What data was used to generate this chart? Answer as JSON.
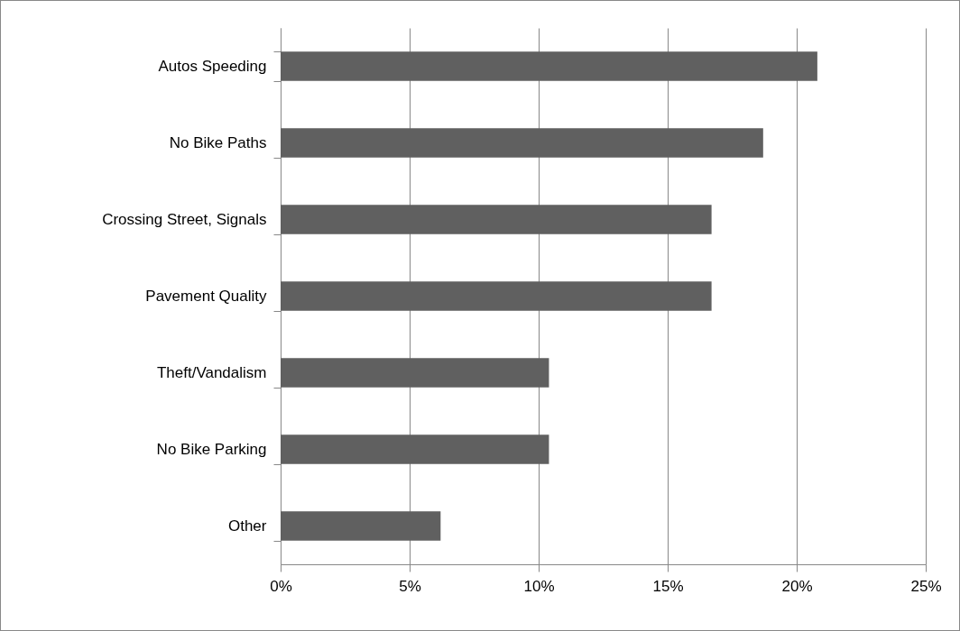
{
  "chart_data": {
    "type": "bar",
    "orientation": "horizontal",
    "categories": [
      "Autos Speeding",
      "No Bike Paths",
      "Crossing Street, Signals",
      "Pavement Quality",
      "Theft/Vandalism",
      "No Bike Parking",
      "Other"
    ],
    "values": [
      20.8,
      18.7,
      16.7,
      16.7,
      10.4,
      10.4,
      6.2
    ],
    "color": "#606060",
    "xlim": [
      0,
      25
    ],
    "xticks": [
      {
        "value": 0,
        "label": "0%"
      },
      {
        "value": 5,
        "label": "5%"
      },
      {
        "value": 10,
        "label": "10%"
      },
      {
        "value": 15,
        "label": "15%"
      },
      {
        "value": 20,
        "label": "20%"
      },
      {
        "value": 25,
        "label": "25%"
      }
    ],
    "grid": "x"
  }
}
